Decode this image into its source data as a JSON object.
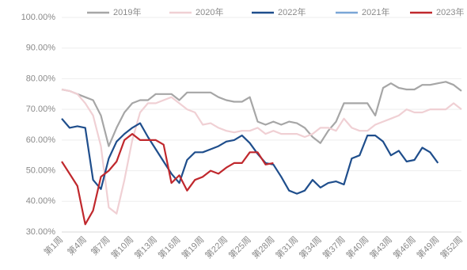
{
  "chart_data": {
    "type": "line",
    "categories": [
      "第1周",
      null,
      null,
      "第4周",
      null,
      null,
      "第7周",
      null,
      null,
      "第10周",
      null,
      null,
      "第13周",
      null,
      null,
      "第16周",
      null,
      null,
      "第19周",
      null,
      null,
      "第22周",
      null,
      null,
      "第25周",
      null,
      null,
      "第28周",
      null,
      null,
      "第31周",
      null,
      null,
      "第34周",
      null,
      null,
      "第37周",
      null,
      null,
      "第40周",
      null,
      null,
      "第43周",
      null,
      null,
      "第46周",
      null,
      null,
      "第49周",
      null,
      null,
      "第52周"
    ],
    "series": [
      {
        "name": "2019年",
        "color": "#a6a6a6",
        "values": [
          76.5,
          76,
          75,
          74,
          73,
          68,
          58,
          64,
          69,
          72,
          73,
          73,
          75,
          75,
          75,
          73,
          75.5,
          75.5,
          75.5,
          75.5,
          74,
          73,
          72.5,
          72.5,
          74,
          66,
          65,
          66,
          65,
          66,
          65.5,
          64,
          61,
          59,
          63,
          66,
          72,
          72,
          72,
          72,
          68,
          77,
          78.5,
          77,
          76.5,
          76.5,
          78,
          78,
          78.5,
          79,
          78,
          76
        ]
      },
      {
        "name": "2020年",
        "color": "#f0d0d4",
        "values": [
          76.5,
          76,
          75,
          72,
          68,
          58,
          38,
          36,
          47,
          60,
          69,
          72,
          72,
          73,
          74,
          72,
          70,
          69,
          65,
          65.5,
          64,
          63,
          62.5,
          63,
          63,
          64,
          62,
          63,
          62,
          62,
          62,
          61,
          62,
          64,
          64,
          63,
          67,
          64,
          63,
          63,
          65,
          66,
          67,
          68,
          70,
          69,
          69,
          70,
          70,
          70,
          72,
          70
        ]
      },
      {
        "name": "2022年",
        "color": "#1f4e8c",
        "values": [
          67,
          64,
          64.5,
          64,
          47,
          44,
          54,
          59.5,
          62,
          64,
          65.5,
          61,
          57,
          53,
          49,
          46,
          53.5,
          56,
          56,
          57,
          58,
          59.5,
          60,
          61.5,
          59,
          55.5,
          52.5,
          52,
          48,
          43.5,
          42.5,
          43.5,
          47,
          44.5,
          46,
          46.5,
          45.5,
          54,
          55,
          61.5,
          61.5,
          59.5,
          55,
          56.5,
          53,
          53.5,
          57.5,
          56,
          52.5,
          null,
          null,
          null
        ]
      },
      {
        "name": "2021年",
        "color": "#7aa6d6",
        "values": [
          null,
          null,
          null,
          null,
          null,
          null,
          null,
          null,
          null,
          null,
          null,
          null,
          null,
          null,
          null,
          null,
          null,
          null,
          null,
          null,
          null,
          null,
          null,
          null,
          null,
          null,
          null,
          null,
          null,
          null,
          null,
          null,
          null,
          null,
          null,
          null,
          null,
          null,
          null,
          null,
          null,
          null,
          null,
          null,
          null,
          null,
          null,
          null,
          null,
          null,
          null,
          null
        ]
      },
      {
        "name": "2023年",
        "color": "#c0282d",
        "values": [
          53,
          49,
          45,
          32.5,
          37,
          48,
          50,
          53,
          60,
          62,
          60,
          60,
          60,
          58.5,
          46,
          48.5,
          43.5,
          47,
          48,
          50,
          49,
          51,
          52.5,
          52.5,
          56,
          56,
          52,
          52.5,
          null,
          null,
          null,
          null,
          null,
          null,
          null,
          null,
          null,
          null,
          null,
          null,
          null,
          null,
          null,
          null,
          null,
          null,
          null,
          null,
          null,
          null,
          null,
          null
        ]
      }
    ],
    "ylim": [
      30,
      100
    ],
    "yticks": [
      {
        "value": 30,
        "label": "30.00%"
      },
      {
        "value": 40,
        "label": "40.00%"
      },
      {
        "value": 50,
        "label": "50.00%"
      },
      {
        "value": 60,
        "label": "60.00%"
      },
      {
        "value": 70,
        "label": "70.00%"
      },
      {
        "value": 80,
        "label": "80.00%"
      },
      {
        "value": 90,
        "label": "90.00%"
      },
      {
        "value": 100,
        "label": "100.00%"
      }
    ],
    "grid": true
  }
}
